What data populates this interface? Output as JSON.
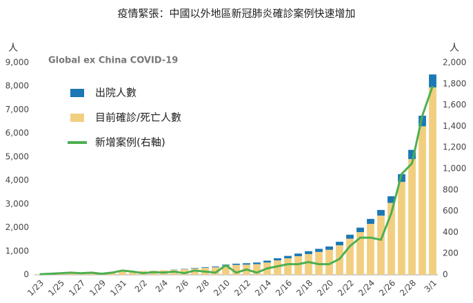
{
  "chart_data": {
    "type": "bar",
    "title": "疫情緊張：中國以外地區新冠肺炎確診案例快速增加",
    "annotation": "Global ex China COVID-19",
    "y_unit": "人",
    "y2_unit": "人",
    "categories": [
      "1/23",
      null,
      "1/25",
      null,
      "1/27",
      null,
      "1/29",
      null,
      "1/31",
      null,
      "2/2",
      null,
      "2/4",
      null,
      "2/6",
      null,
      "2/8",
      null,
      "2/10",
      null,
      "2/12",
      null,
      "2/14",
      null,
      "2/16",
      null,
      "2/18",
      null,
      "2/20",
      null,
      "2/22",
      null,
      "2/24",
      null,
      "2/26",
      null,
      "2/28",
      null,
      "3/1"
    ],
    "series": [
      {
        "name": "出院人數",
        "type": "bar",
        "color": "#1b78b4",
        "values": [
          0,
          0,
          0,
          0,
          0,
          0,
          0,
          0,
          0,
          0,
          0,
          0,
          0,
          10,
          15,
          20,
          25,
          30,
          40,
          50,
          60,
          70,
          80,
          90,
          100,
          110,
          120,
          130,
          140,
          150,
          170,
          190,
          210,
          240,
          280,
          330,
          390,
          450,
          550
        ]
      },
      {
        "name": "目前確診/死亡人數",
        "type": "bar",
        "color": "#f2cf80",
        "values": [
          15,
          30,
          40,
          55,
          60,
          70,
          80,
          100,
          130,
          145,
          160,
          170,
          190,
          210,
          235,
          270,
          295,
          320,
          390,
          420,
          430,
          450,
          520,
          610,
          700,
          790,
          880,
          970,
          1060,
          1250,
          1530,
          1810,
          2160,
          2510,
          3050,
          3940,
          4910,
          6300,
          7950
        ]
      },
      {
        "name": "新增案例(右軸)",
        "type": "line",
        "axis": "y2",
        "color": "#4caf50",
        "values": [
          5,
          10,
          15,
          20,
          15,
          20,
          10,
          20,
          40,
          30,
          15,
          25,
          20,
          30,
          15,
          40,
          30,
          20,
          90,
          20,
          50,
          20,
          60,
          80,
          100,
          100,
          120,
          100,
          100,
          150,
          270,
          350,
          350,
          330,
          580,
          950,
          1050,
          1500,
          1780
        ]
      }
    ],
    "ylim": [
      0,
      9000
    ],
    "yticks": [
      0,
      {
        "value": 1000,
        "label": "1,000"
      },
      {
        "value": 2000,
        "label": "2,000"
      },
      {
        "value": 3000,
        "label": "3,000"
      },
      {
        "value": 4000,
        "label": "4,000"
      },
      {
        "value": 5000,
        "label": "5,000"
      },
      {
        "value": 6000,
        "label": "6,000"
      },
      {
        "value": 7000,
        "label": "7,000"
      },
      {
        "value": 8000,
        "label": "8,000"
      },
      {
        "value": 9000,
        "label": "9,000"
      }
    ],
    "y2lim": [
      0,
      2000
    ],
    "y2ticks": [
      0,
      200,
      400,
      600,
      800,
      {
        "value": 1000,
        "label": "1,000"
      },
      {
        "value": 1200,
        "label": "1,200"
      },
      {
        "value": 1400,
        "label": "1,400"
      },
      {
        "value": 1600,
        "label": "1,600"
      },
      {
        "value": 1800,
        "label": "1,800"
      },
      {
        "value": 2000,
        "label": "2,000"
      }
    ],
    "legend": "upper left"
  }
}
